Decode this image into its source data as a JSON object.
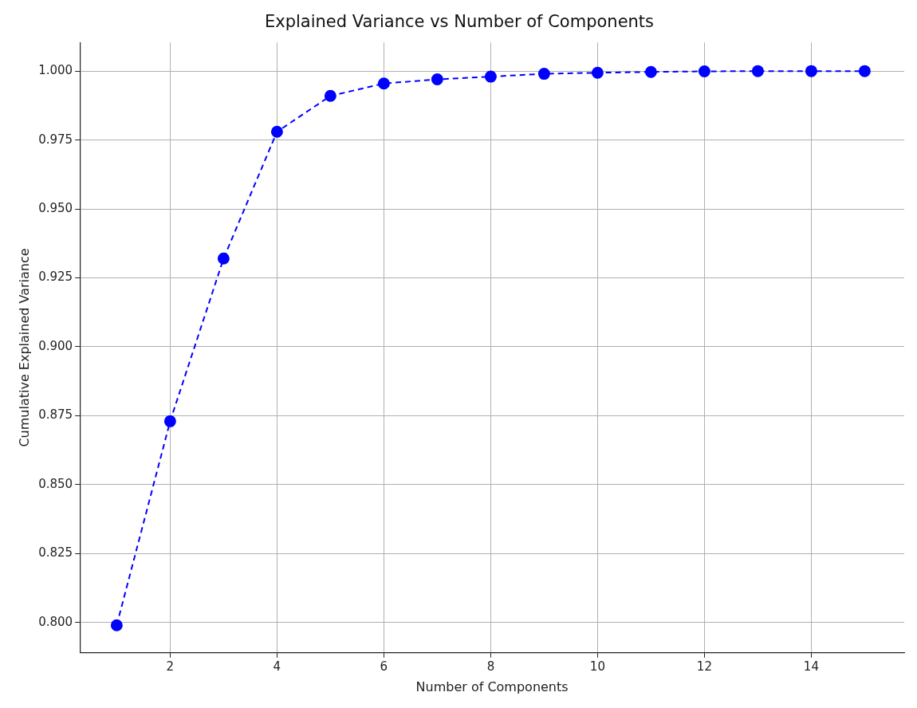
{
  "chart_data": {
    "type": "line",
    "title": "Explained Variance vs Number of Components",
    "xlabel": "Number of Components",
    "ylabel": "Cumulative Explained Variance",
    "x": [
      1,
      2,
      3,
      4,
      5,
      6,
      7,
      8,
      9,
      10,
      11,
      12,
      13,
      14,
      15
    ],
    "series": [
      {
        "color": "#0000ff",
        "values": [
          0.799,
          0.873,
          0.932,
          0.978,
          0.991,
          0.9955,
          0.997,
          0.998,
          0.999,
          0.9994,
          0.9997,
          0.9999,
          1.0,
          1.0,
          1.0
        ]
      }
    ],
    "xlim": [
      0.31,
      15.74
    ],
    "ylim": [
      0.789,
      1.0104
    ],
    "xticks": [
      2,
      4,
      6,
      8,
      10,
      12,
      14
    ],
    "yticks": [
      {
        "value": 0.8,
        "label": "0.800"
      },
      {
        "value": 0.825,
        "label": "0.825"
      },
      {
        "value": 0.85,
        "label": "0.850"
      },
      {
        "value": 0.875,
        "label": "0.875"
      },
      {
        "value": 0.9,
        "label": "0.900"
      },
      {
        "value": 0.925,
        "label": "0.925"
      },
      {
        "value": 0.95,
        "label": "0.950"
      },
      {
        "value": 0.975,
        "label": "0.975"
      },
      {
        "value": 1.0,
        "label": "1.000"
      }
    ],
    "grid": true,
    "marker": "circle",
    "line_style": "dashed"
  }
}
